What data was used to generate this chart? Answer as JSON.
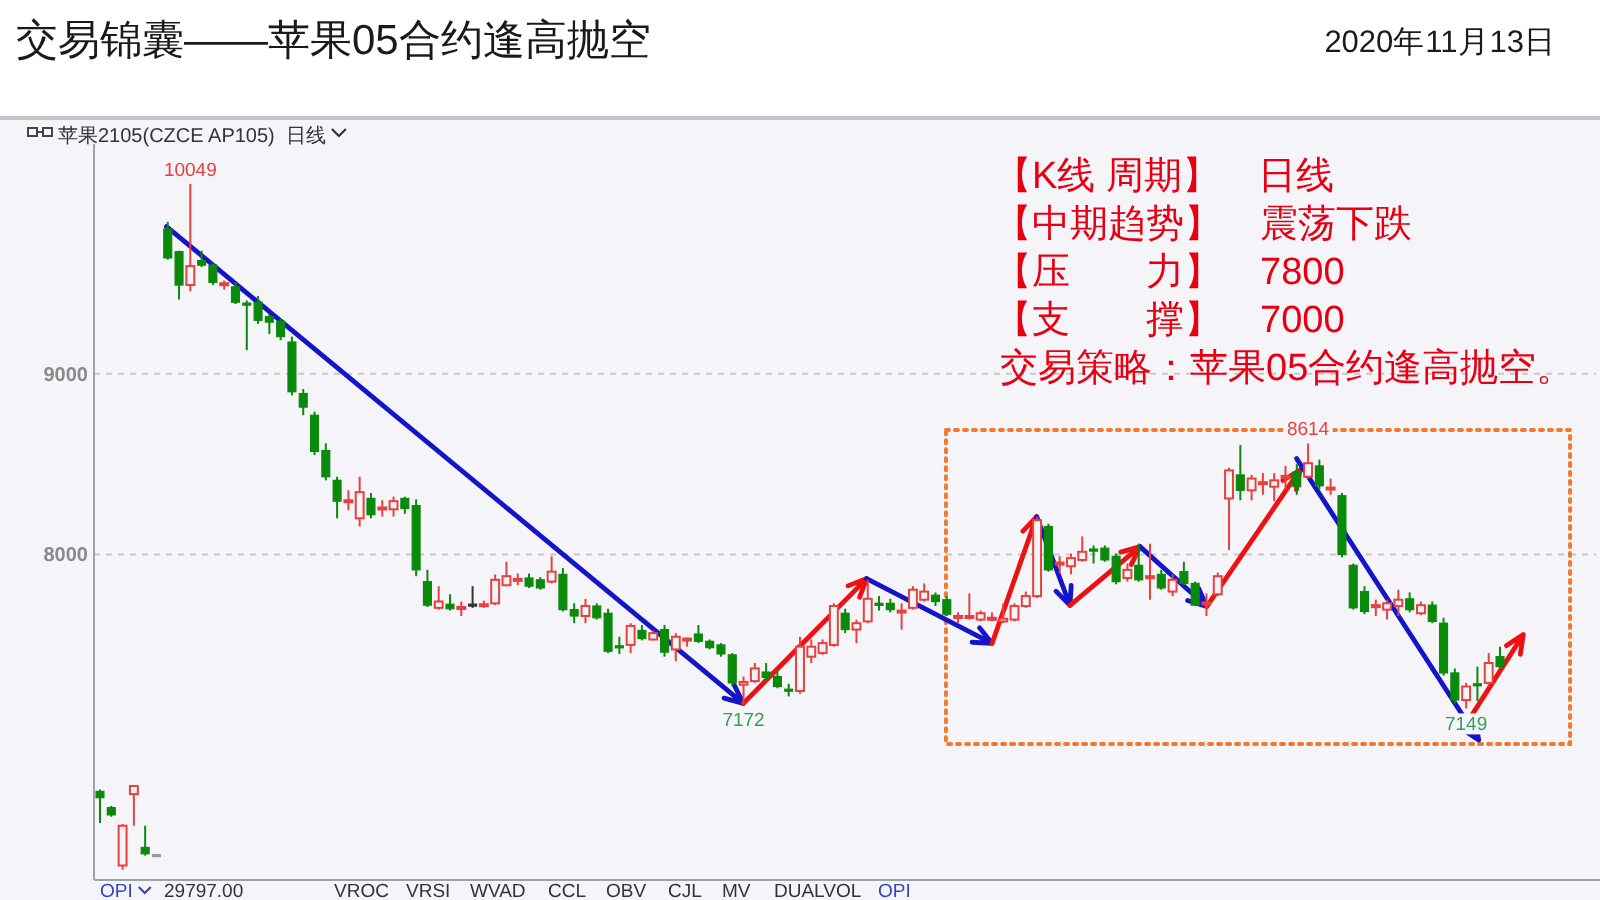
{
  "chart_data": {
    "type": "candlestick",
    "title": "交易锦囊——苹果05合约逢高抛空",
    "subtitle": "苹果2105(CZCE AP105)  日线",
    "categories": [
      null,
      null,
      null,
      null,
      null,
      null,
      null,
      null,
      null,
      null,
      null,
      null,
      null,
      null,
      null,
      null,
      null,
      null,
      null,
      null,
      null,
      null,
      null,
      null,
      null,
      null,
      null,
      null,
      null,
      null,
      null,
      null,
      null,
      null,
      null,
      null,
      null,
      null,
      null,
      null,
      null,
      null,
      null,
      null,
      null,
      null,
      null,
      null,
      null,
      null,
      null,
      null,
      null,
      null,
      null,
      null,
      null,
      null,
      null,
      null,
      null,
      null,
      null,
      null,
      null,
      null,
      null,
      null,
      null,
      null,
      null,
      null,
      null,
      null,
      null,
      null,
      null,
      null,
      null,
      null,
      null,
      null,
      null,
      null,
      null,
      null,
      null,
      null,
      null,
      null,
      null,
      null,
      null,
      null,
      null,
      null,
      null,
      null,
      null,
      null,
      null,
      null,
      null,
      null,
      null,
      null,
      null,
      null,
      null,
      null,
      null,
      null,
      null,
      null,
      null,
      null,
      null,
      null,
      null,
      null,
      null,
      null,
      null,
      null,
      null
    ],
    "ohlc": [
      [
        6690,
        6700,
        6515,
        6655
      ],
      [
        6600,
        6610,
        6550,
        6560
      ],
      [
        6280,
        6510,
        6257,
        6500
      ],
      [
        6675,
        6720,
        6500,
        6720
      ],
      [
        6380,
        6500,
        6335,
        6345
      ],
      [
        6335,
        6335,
        6335,
        6335
      ],
      [
        9800,
        9840,
        9630,
        9640
      ],
      [
        9675,
        9680,
        9410,
        9490
      ],
      [
        9490,
        10049,
        9455,
        9595
      ],
      [
        9625,
        9680,
        9590,
        9600
      ],
      [
        9600,
        9610,
        9490,
        9505
      ],
      [
        9490,
        9515,
        9465,
        9500
      ],
      [
        9480,
        9505,
        9385,
        9395
      ],
      [
        9390,
        9405,
        9130,
        9380
      ],
      [
        9395,
        9430,
        9275,
        9295
      ],
      [
        9315,
        9330,
        9220,
        9285
      ],
      [
        9290,
        9305,
        9185,
        9205
      ],
      [
        9175,
        9205,
        8880,
        8900
      ],
      [
        8890,
        8915,
        8770,
        8815
      ],
      [
        8770,
        8790,
        8550,
        8570
      ],
      [
        8575,
        8615,
        8410,
        8430
      ],
      [
        8410,
        8430,
        8200,
        8295
      ],
      [
        8295,
        8355,
        8245,
        8300
      ],
      [
        8200,
        8430,
        8155,
        8345
      ],
      [
        8310,
        8340,
        8200,
        8220
      ],
      [
        8250,
        8300,
        8210,
        8260
      ],
      [
        8250,
        8320,
        8210,
        8295
      ],
      [
        8310,
        8320,
        8225,
        8255
      ],
      [
        8270,
        8305,
        7880,
        7915
      ],
      [
        7850,
        7915,
        7710,
        7720
      ],
      [
        7705,
        7825,
        7695,
        7740
      ],
      [
        7725,
        7780,
        7690,
        7700
      ],
      [
        7700,
        7740,
        7660,
        7710
      ],
      [
        7720,
        7825,
        7705,
        7720
      ],
      [
        7715,
        7745,
        7705,
        7725
      ],
      [
        7730,
        7890,
        7720,
        7860
      ],
      [
        7830,
        7960,
        7825,
        7880
      ],
      [
        7855,
        7895,
        7830,
        7865
      ],
      [
        7870,
        7895,
        7815,
        7825
      ],
      [
        7860,
        7875,
        7805,
        7815
      ],
      [
        7850,
        7990,
        7840,
        7905
      ],
      [
        7890,
        7925,
        7685,
        7695
      ],
      [
        7695,
        7730,
        7620,
        7660
      ],
      [
        7660,
        7755,
        7620,
        7715
      ],
      [
        7715,
        7730,
        7640,
        7650
      ],
      [
        7675,
        7700,
        7455,
        7465
      ],
      [
        7495,
        7545,
        7450,
        7485
      ],
      [
        7500,
        7620,
        7455,
        7605
      ],
      [
        7580,
        7610,
        7525,
        7535
      ],
      [
        7530,
        7580,
        7525,
        7565
      ],
      [
        7585,
        7610,
        7435,
        7460
      ],
      [
        7475,
        7565,
        7410,
        7545
      ],
      [
        7525,
        7540,
        7490,
        7535
      ],
      [
        7560,
        7610,
        7510,
        7520
      ],
      [
        7520,
        7530,
        7475,
        7485
      ],
      [
        7500,
        7510,
        7435,
        7450
      ],
      [
        7445,
        7455,
        7270,
        7290
      ],
      [
        7280,
        7325,
        7172,
        7295
      ],
      [
        7300,
        7400,
        7290,
        7370
      ],
      [
        7350,
        7400,
        7300,
        7320
      ],
      [
        7325,
        7360,
        7260,
        7270
      ],
      [
        7255,
        7285,
        7215,
        7250
      ],
      [
        7245,
        7545,
        7230,
        7490
      ],
      [
        7435,
        7530,
        7400,
        7490
      ],
      [
        7455,
        7530,
        7445,
        7510
      ],
      [
        7500,
        7730,
        7490,
        7715
      ],
      [
        7675,
        7700,
        7565,
        7585
      ],
      [
        7585,
        7640,
        7510,
        7620
      ],
      [
        7630,
        7860,
        7620,
        7755
      ],
      [
        7730,
        7770,
        7690,
        7720
      ],
      [
        7730,
        7755,
        7680,
        7695
      ],
      [
        7680,
        7730,
        7585,
        7690
      ],
      [
        7705,
        7825,
        7695,
        7805
      ],
      [
        7750,
        7840,
        7740,
        7795
      ],
      [
        7775,
        7790,
        7715,
        7740
      ],
      [
        7750,
        7770,
        7660,
        7670
      ],
      [
        7650,
        7680,
        7620,
        7660
      ],
      [
        7650,
        7785,
        7640,
        7660
      ],
      [
        7640,
        7690,
        7630,
        7675
      ],
      [
        7640,
        7680,
        7630,
        7650
      ],
      [
        7630,
        7730,
        7620,
        7645
      ],
      [
        7640,
        7730,
        7630,
        7715
      ],
      [
        7715,
        7795,
        7705,
        7770
      ],
      [
        7770,
        8210,
        7760,
        8190
      ],
      [
        8155,
        8170,
        7905,
        7915
      ],
      [
        7945,
        7990,
        7895,
        7955
      ],
      [
        7935,
        8005,
        7890,
        7980
      ],
      [
        7970,
        8100,
        7960,
        8015
      ],
      [
        8030,
        8050,
        7950,
        8020
      ],
      [
        8035,
        8050,
        7960,
        7970
      ],
      [
        7990,
        8005,
        7835,
        7850
      ],
      [
        7870,
        7950,
        7850,
        7915
      ],
      [
        7940,
        8060,
        7850,
        7860
      ],
      [
        7870,
        8060,
        7750,
        7880
      ],
      [
        7890,
        7915,
        7805,
        7815
      ],
      [
        7795,
        7890,
        7770,
        7860
      ],
      [
        7905,
        7960,
        7830,
        7840
      ],
      [
        7840,
        7850,
        7715,
        7720
      ],
      [
        7725,
        7785,
        7660,
        7735
      ],
      [
        7780,
        7900,
        7770,
        7880
      ],
      [
        8310,
        8480,
        8025,
        8465
      ],
      [
        8440,
        8605,
        8300,
        8355
      ],
      [
        8355,
        8440,
        8300,
        8420
      ],
      [
        8390,
        8450,
        8330,
        8400
      ],
      [
        8375,
        8450,
        8295,
        8410
      ],
      [
        8425,
        8490,
        8360,
        8435
      ],
      [
        8455,
        8500,
        8330,
        8375
      ],
      [
        8430,
        8614,
        8420,
        8505
      ],
      [
        8490,
        8525,
        8360,
        8380
      ],
      [
        8360,
        8420,
        8330,
        8370
      ],
      [
        8325,
        8340,
        7985,
        8000
      ],
      [
        7940,
        7950,
        7695,
        7705
      ],
      [
        7795,
        7825,
        7670,
        7685
      ],
      [
        7710,
        7750,
        7660,
        7720
      ],
      [
        7695,
        7750,
        7640,
        7730
      ],
      [
        7715,
        7805,
        7660,
        7750
      ],
      [
        7755,
        7790,
        7680,
        7695
      ],
      [
        7675,
        7740,
        7665,
        7720
      ],
      [
        7720,
        7740,
        7620,
        7630
      ],
      [
        7620,
        7650,
        7330,
        7345
      ],
      [
        7345,
        7370,
        7175,
        7195
      ],
      [
        7195,
        7290,
        7149,
        7270
      ],
      [
        7285,
        7380,
        7190,
        7275
      ],
      [
        7290,
        7455,
        7270,
        7400
      ],
      [
        7435,
        7490,
        7370,
        7380
      ]
    ],
    "colors": [
      "#0a8a0a",
      "#0a8a0a",
      "#e8413d",
      "#e8413d",
      "#0a8a0a",
      "#999999",
      "#0a8a0a",
      "#0a8a0a",
      "#e8413d",
      "#0a8a0a",
      "#0a8a0a",
      "#e8413d",
      "#0a8a0a",
      "#0a8a0a",
      "#0a8a0a",
      "#0a8a0a",
      "#0a8a0a",
      "#0a8a0a",
      "#0a8a0a",
      "#0a8a0a",
      "#0a8a0a",
      "#0a8a0a",
      "#e8413d",
      "#e8413d",
      "#0a8a0a",
      "#e8413d",
      "#e8413d",
      "#0a8a0a",
      "#0a8a0a",
      "#0a8a0a",
      "#e8413d",
      "#0a8a0a",
      "#e8413d",
      "#333333",
      "#e8413d",
      "#e8413d",
      "#e8413d",
      "#e8413d",
      "#0a8a0a",
      "#0a8a0a",
      "#e8413d",
      "#0a8a0a",
      "#0a8a0a",
      "#e8413d",
      "#0a8a0a",
      "#0a8a0a",
      "#0a8a0a",
      "#e8413d",
      "#0a8a0a",
      "#e8413d",
      "#0a8a0a",
      "#e8413d",
      "#e8413d",
      "#0a8a0a",
      "#0a8a0a",
      "#0a8a0a",
      "#0a8a0a",
      "#e8413d",
      "#e8413d",
      "#0a8a0a",
      "#0a8a0a",
      "#0a8a0a",
      "#e8413d",
      "#e8413d",
      "#e8413d",
      "#e8413d",
      "#0a8a0a",
      "#e8413d",
      "#e8413d",
      "#0a8a0a",
      "#0a8a0a",
      "#e8413d",
      "#e8413d",
      "#e8413d",
      "#0a8a0a",
      "#0a8a0a",
      "#e8413d",
      "#e8413d",
      "#e8413d",
      "#e8413d",
      "#e8413d",
      "#e8413d",
      "#e8413d",
      "#e8413d",
      "#0a8a0a",
      "#e8413d",
      "#e8413d",
      "#e8413d",
      "#0a8a0a",
      "#0a8a0a",
      "#0a8a0a",
      "#e8413d",
      "#0a8a0a",
      "#e8413d",
      "#0a8a0a",
      "#e8413d",
      "#0a8a0a",
      "#0a8a0a",
      "#e8413d",
      "#e8413d",
      "#e8413d",
      "#0a8a0a",
      "#e8413d",
      "#e8413d",
      "#e8413d",
      "#e8413d",
      "#0a8a0a",
      "#e8413d",
      "#0a8a0a",
      "#e8413d",
      "#0a8a0a",
      "#0a8a0a",
      "#0a8a0a",
      "#e8413d",
      "#e8413d",
      "#e8413d",
      "#0a8a0a",
      "#e8413d",
      "#0a8a0a",
      "#0a8a0a",
      "#0a8a0a",
      "#e8413d",
      "#0a8a0a",
      "#e8413d",
      "#0a8a0a"
    ],
    "ylim": [
      6200,
      10270
    ],
    "yticks": [
      8000,
      9000
    ],
    "grid": "y",
    "tick_labels": "y",
    "annotations": [
      "2020年11月13日",
      "【K线 周期】　日线",
      "【中期趋势】　震荡下跌",
      "【压　　力】　7800",
      "【支　　撑】　7000",
      "交易策略：苹果05合约逢高抛空。",
      {
        "text": "10049",
        "y": 10049
      },
      {
        "text": "7172",
        "y": 7172
      },
      {
        "text": "8614",
        "y": 8614
      },
      {
        "text": "7149",
        "y": 7149
      },
      "OPI",
      "29797.00",
      "VROC",
      "VRSI",
      "WVAD",
      "CCL",
      "OBV",
      "CJL",
      "MV",
      "DUALVOL",
      "OPI"
    ]
  }
}
